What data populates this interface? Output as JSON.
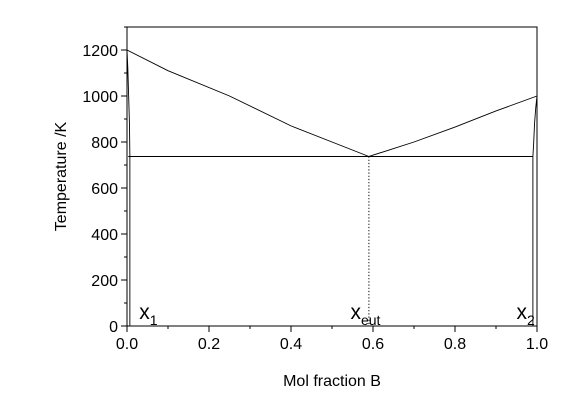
{
  "chart_data": {
    "type": "line",
    "title": "",
    "xlabel": "Mol fraction B",
    "ylabel": "Temperature /K",
    "xlim": [
      0.0,
      1.0
    ],
    "ylim": [
      0,
      1300
    ],
    "xticks": [
      0.0,
      0.2,
      0.4,
      0.6,
      0.8,
      1.0
    ],
    "xtick_labels": [
      "0.0",
      "0.2",
      "0.4",
      "0.6",
      "0.8",
      "1.0"
    ],
    "yticks": [
      0,
      200,
      400,
      600,
      800,
      1000,
      1200
    ],
    "ytick_labels": [
      "0",
      "200",
      "400",
      "600",
      "800",
      "1000",
      "1200"
    ],
    "grid": false,
    "legend": "none",
    "series": [
      {
        "role": "liquidus-left",
        "x": [
          0.0,
          0.1,
          0.25,
          0.4,
          0.5,
          0.59
        ],
        "y": [
          1200,
          1110,
          1000,
          870,
          800,
          737
        ]
      },
      {
        "role": "liquidus-right",
        "x": [
          0.59,
          0.7,
          0.8,
          0.9,
          1.0
        ],
        "y": [
          737,
          800,
          865,
          935,
          1000
        ]
      },
      {
        "role": "eutectic-line",
        "x": [
          0.003,
          0.99
        ],
        "y": [
          737,
          737
        ]
      },
      {
        "role": "solidus-left",
        "x": [
          0.0,
          0.002,
          0.004,
          0.006,
          0.007,
          0.007
        ],
        "y": [
          1200,
          1120,
          1000,
          880,
          737,
          0
        ]
      },
      {
        "role": "solidus-right",
        "x": [
          1.0,
          0.997,
          0.994,
          0.992,
          0.99,
          0.99
        ],
        "y": [
          1000,
          950,
          880,
          800,
          737,
          0
        ]
      },
      {
        "role": "drop-eutectic",
        "style": "dotted",
        "x": [
          0.59,
          0.59
        ],
        "y": [
          737,
          0
        ]
      }
    ],
    "annotations": [
      {
        "id": "x1",
        "main": "x",
        "sub": "1",
        "x": 0.03,
        "y": 30
      },
      {
        "id": "xeut",
        "main": "x",
        "sub": "eut",
        "x": 0.545,
        "y": 30
      },
      {
        "id": "x2",
        "main": "x",
        "sub": "2",
        "x": 0.95,
        "y": 30
      }
    ]
  }
}
